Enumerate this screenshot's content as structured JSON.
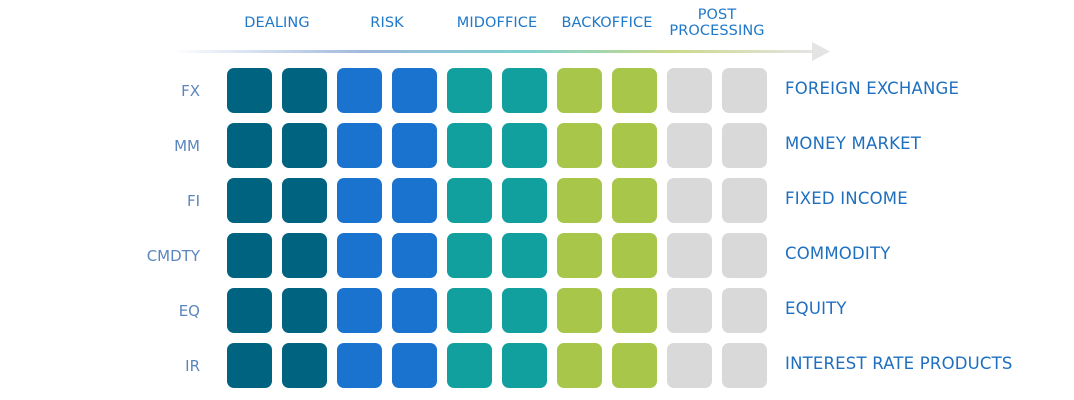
{
  "stages": [
    {
      "label": "DEALING",
      "color": "#00637f"
    },
    {
      "label": "RISK",
      "color": "#1a73cf"
    },
    {
      "label": "MIDOFFICE",
      "color": "#11a09e"
    },
    {
      "label": "BACKOFFICE",
      "color": "#a8c64a"
    },
    {
      "label": "POST\nPROCESSING",
      "color": "#d9d9d9"
    }
  ],
  "rows": [
    {
      "code": "FX",
      "name": "FOREIGN EXCHANGE"
    },
    {
      "code": "MM",
      "name": "MONEY MARKET"
    },
    {
      "code": "FI",
      "name": "FIXED INCOME"
    },
    {
      "code": "CMDTY",
      "name": "COMMODITY"
    },
    {
      "code": "EQ",
      "name": "EQUITY"
    },
    {
      "code": "IR",
      "name": "INTEREST RATE PRODUCTS"
    }
  ],
  "cells_per_stage": 2,
  "arrow_gradient": [
    "#ffffff",
    "#9fb8dc",
    "#7fd0d0",
    "#c9d98a",
    "#e4e4e4"
  ]
}
